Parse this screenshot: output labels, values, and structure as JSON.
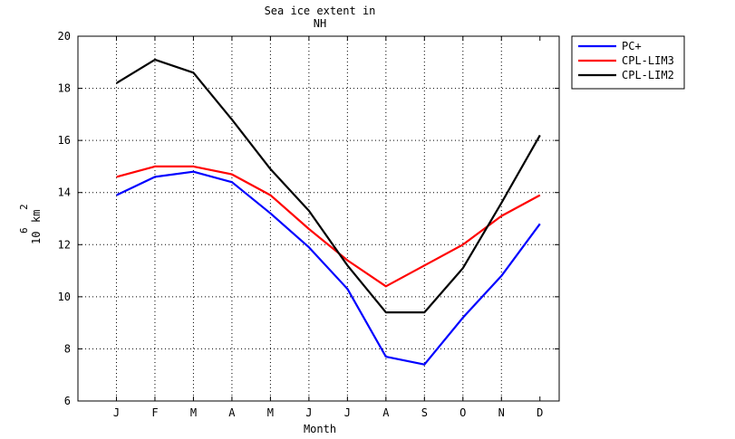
{
  "chart_data": {
    "type": "line",
    "title_lines": [
      "Sea ice extent in",
      "NH"
    ],
    "xlabel": "Month",
    "ylabel": {
      "base": "10",
      "base_exp": "6",
      "unit": "km",
      "unit_exp": "2"
    },
    "categories": [
      "J",
      "F",
      "M",
      "A",
      "M",
      "J",
      "J",
      "A",
      "S",
      "O",
      "N",
      "D"
    ],
    "ylim": [
      6,
      20
    ],
    "yticks": [
      "6",
      "8",
      "10",
      "12",
      "14",
      "16",
      "18",
      "20"
    ],
    "grid": true,
    "legend_position": "outside-top-right",
    "series": [
      {
        "name": "PC+",
        "color": "#0000ff",
        "values": [
          13.9,
          14.6,
          14.8,
          14.4,
          13.2,
          11.9,
          10.3,
          7.7,
          7.4,
          9.2,
          10.8,
          12.8
        ]
      },
      {
        "name": "CPL-LIM3",
        "color": "#ff0000",
        "values": [
          14.6,
          15.0,
          15.0,
          14.7,
          13.9,
          12.6,
          11.4,
          10.4,
          11.2,
          12.0,
          13.1,
          13.9
        ]
      },
      {
        "name": "CPL-LIM2",
        "color": "#000000",
        "values": [
          18.2,
          19.1,
          18.6,
          16.8,
          14.9,
          13.3,
          11.2,
          9.4,
          9.4,
          11.1,
          13.6,
          16.2
        ]
      }
    ]
  }
}
